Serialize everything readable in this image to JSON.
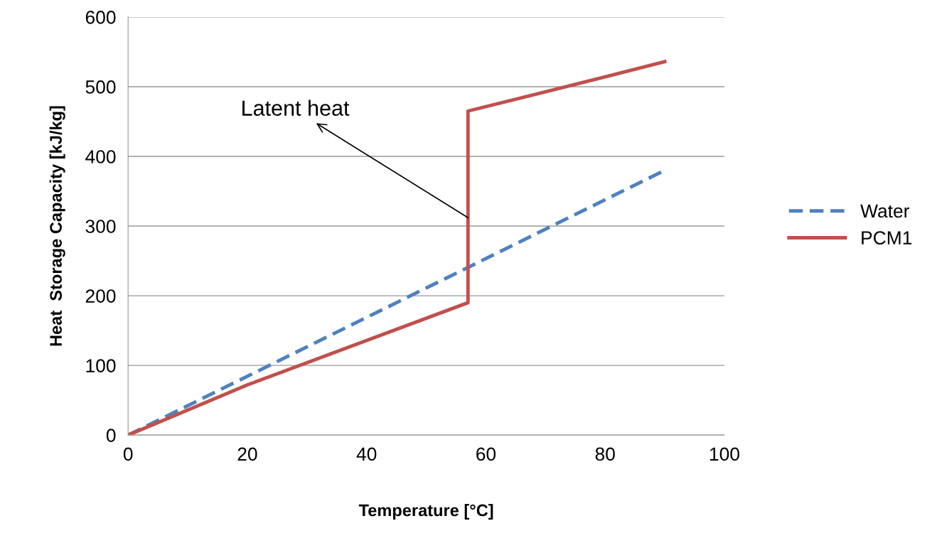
{
  "chart_data": {
    "type": "line",
    "xlabel": "Temperature [°C]",
    "ylabel": "Heat  Storage Capacity [kJ/kg]",
    "xlim": [
      0,
      100
    ],
    "xticks": [
      0,
      20,
      40,
      60,
      80,
      100
    ],
    "ylim": [
      0,
      600
    ],
    "yticks": [
      0,
      100,
      200,
      300,
      400,
      500,
      600
    ],
    "grid": "y",
    "legend": "right",
    "marker": "none",
    "series": [
      {
        "name": "Water",
        "color": "#4f81bd",
        "line_style": "dashed",
        "x": [
          0,
          90
        ],
        "values": [
          0,
          380
        ]
      },
      {
        "name": "PCM1",
        "color": "#c0504d",
        "line_style": "solid",
        "x": [
          0,
          20,
          57,
          57,
          80,
          90
        ],
        "values": [
          0,
          72,
          190,
          465,
          514,
          536
        ]
      }
    ],
    "annotations": [
      {
        "text": "Latent heat",
        "x": 57,
        "y": 312
      }
    ]
  }
}
